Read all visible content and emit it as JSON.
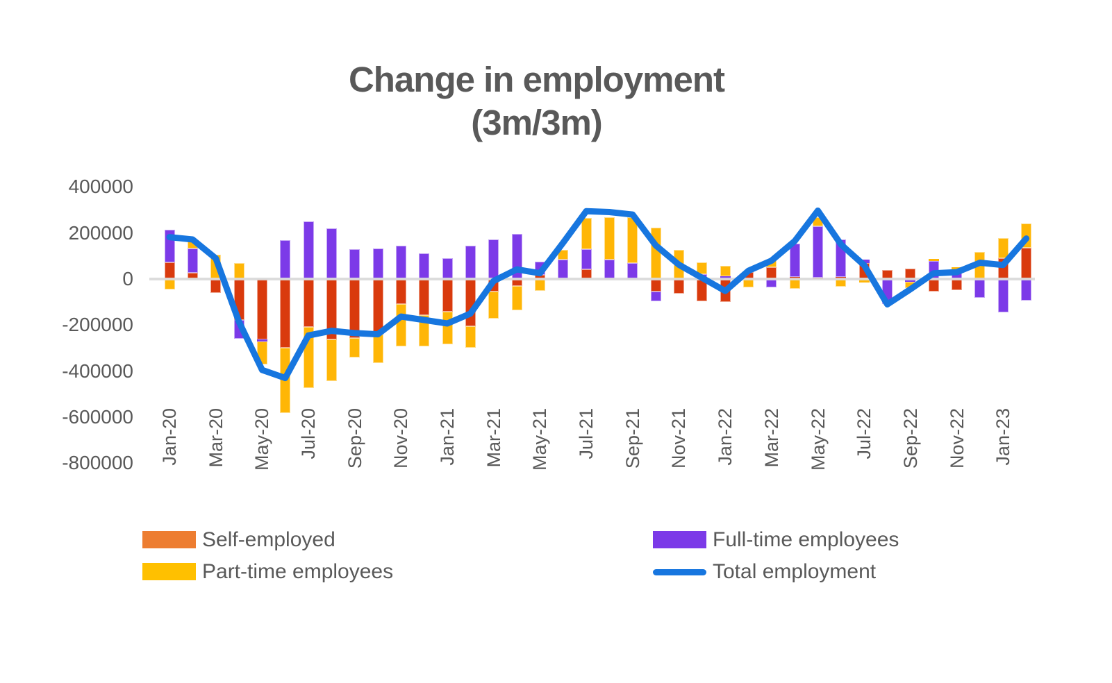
{
  "title": {
    "line1": "Change in employment",
    "line2": "(3m/3m)"
  },
  "colors": {
    "self_employed_bar": "#D93A0D",
    "self_employed_legend": "#ED7D31",
    "part_time_bar": "#FFB606",
    "part_time_legend": "#FFC000",
    "full_time": "#7C3AE8",
    "total_line": "#1776DF",
    "text": "#595959",
    "gridline": "#D9D9D9"
  },
  "legend": [
    {
      "label": "Self-employed",
      "type": "box",
      "color": "#ED7D31"
    },
    {
      "label": "Part-time employees",
      "type": "box",
      "color": "#FFC000"
    },
    {
      "label": "Full-time employees",
      "type": "box",
      "color": "#7C3AE8"
    },
    {
      "label": "Total employment",
      "type": "line",
      "color": "#1776DF"
    }
  ],
  "chart_data": {
    "type": "bar",
    "subtype": "stacked-bars-with-line",
    "title": "Change in employment (3m/3m)",
    "xlabel": "",
    "ylabel": "",
    "ylim": [
      -800000,
      400000
    ],
    "grid": "zero-line-only",
    "legend_position": "bottom",
    "y_ticks": [
      400000,
      200000,
      0,
      -200000,
      -400000,
      -600000,
      -800000
    ],
    "y_tick_labels": [
      "400000",
      "200000",
      "0",
      "-200000",
      "-400000",
      "-600000",
      "-800000"
    ],
    "x_tick_labels": [
      "Jan-20",
      "Mar-20",
      "May-20",
      "Jul-20",
      "Sep-20",
      "Nov-20",
      "Jan-21",
      "Mar-21",
      "May-21",
      "Jul-21",
      "Sep-21",
      "Nov-21",
      "Jan-22",
      "Mar-22",
      "May-22",
      "Jul-22",
      "Sep-22",
      "Nov-22",
      "Jan-23"
    ],
    "categories": [
      "Jan-20",
      "Feb-20",
      "Mar-20",
      "Apr-20",
      "May-20",
      "Jun-20",
      "Jul-20",
      "Aug-20",
      "Sep-20",
      "Oct-20",
      "Nov-20",
      "Dec-20",
      "Jan-21",
      "Feb-21",
      "Mar-21",
      "Apr-21",
      "May-21",
      "Jun-21",
      "Jul-21",
      "Aug-21",
      "Sep-21",
      "Oct-21",
      "Nov-21",
      "Dec-21",
      "Jan-22",
      "Feb-22",
      "Mar-22",
      "Apr-22",
      "May-22",
      "Jun-22",
      "Jul-22",
      "Aug-22",
      "Sep-22",
      "Oct-22",
      "Nov-22",
      "Dec-22",
      "Jan-23",
      "Feb-23"
    ],
    "stack_order_note": "stacked from zero outward: Self-employed, Full-time, Part-time",
    "series": [
      {
        "name": "Self-employed",
        "color": "#D93A0D",
        "values": [
          72000,
          27000,
          -60000,
          -178000,
          -262000,
          -299000,
          -208000,
          -262000,
          -256000,
          -240000,
          -109000,
          -157000,
          -142000,
          -205000,
          -54000,
          -30000,
          18000,
          0,
          42000,
          0,
          0,
          -54000,
          -63000,
          -97000,
          -100000,
          30000,
          51000,
          8000,
          6000,
          9000,
          69000,
          40000,
          45000,
          -54000,
          -48000,
          3000,
          90000,
          136000
        ]
      },
      {
        "name": "Full-time employees",
        "color": "#7C3AE8",
        "values": [
          142000,
          105000,
          0,
          -81000,
          -10000,
          170000,
          250000,
          220000,
          130000,
          133000,
          145000,
          112000,
          91000,
          145000,
          172000,
          195000,
          57000,
          84000,
          88000,
          84000,
          70000,
          -42000,
          0,
          20000,
          12000,
          0,
          -36000,
          145000,
          223000,
          163000,
          15000,
          -110000,
          -12000,
          78000,
          39000,
          -81000,
          -145000,
          -94000
        ]
      },
      {
        "name": "Part-time employees",
        "color": "#FFB606",
        "values": [
          -45000,
          35000,
          105000,
          69000,
          -99000,
          -283000,
          -266000,
          -182000,
          -85000,
          -125000,
          -184000,
          -136000,
          -140000,
          -94000,
          -118000,
          -105000,
          -51000,
          43000,
          135000,
          184000,
          199000,
          223000,
          127000,
          51000,
          45000,
          -36000,
          30000,
          -42000,
          40000,
          -33000,
          -15000,
          0,
          -27000,
          9000,
          12000,
          115000,
          88000,
          105000
        ]
      }
    ],
    "line_series": {
      "name": "Total employment",
      "color": "#1776DF",
      "values": [
        182000,
        172000,
        90000,
        -185000,
        -395000,
        -430000,
        -245000,
        -225000,
        -235000,
        -240000,
        -163000,
        -178000,
        -193000,
        -150000,
        -8000,
        42000,
        25000,
        158000,
        295000,
        291000,
        280000,
        146000,
        62000,
        5000,
        -52000,
        36000,
        80000,
        165000,
        297000,
        150000,
        60000,
        -110000,
        -44000,
        25000,
        30000,
        71000,
        61000,
        176000
      ]
    }
  }
}
